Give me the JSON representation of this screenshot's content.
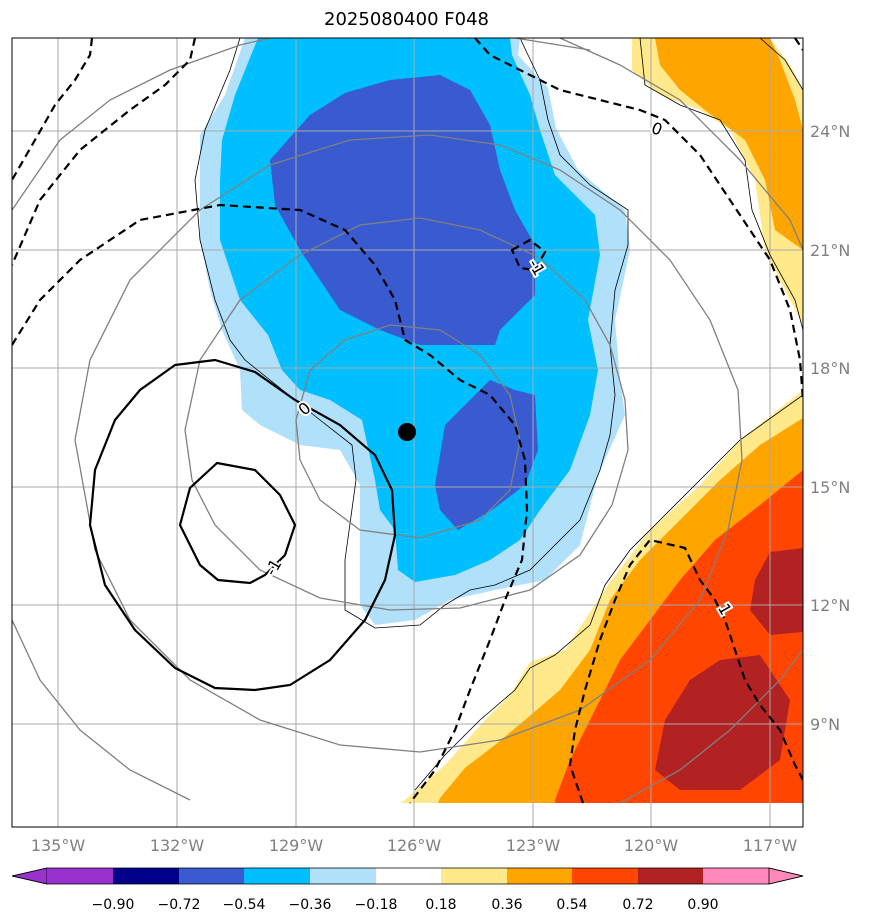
{
  "title": "2025080400 F048",
  "map": {
    "lon_range": [
      -136.5,
      -116.5
    ],
    "lat_range": [
      7.0,
      26.5
    ],
    "lon_ticks": [
      {
        "value": -135,
        "label": "135°W"
      },
      {
        "value": -132,
        "label": "132°W"
      },
      {
        "value": -129,
        "label": "129°W"
      },
      {
        "value": -126,
        "label": "126°W"
      },
      {
        "value": -123,
        "label": "123°W"
      },
      {
        "value": -120,
        "label": "120°W"
      },
      {
        "value": -117,
        "label": "117°W"
      }
    ],
    "lat_ticks": [
      {
        "value": 9,
        "label": "9°N"
      },
      {
        "value": 12,
        "label": "12°N"
      },
      {
        "value": 15,
        "label": "15°N"
      },
      {
        "value": 18,
        "label": "18°N"
      },
      {
        "value": 21,
        "label": "21°N"
      },
      {
        "value": 24,
        "label": "24°N"
      }
    ],
    "gridlines": true,
    "center_marker": {
      "lon": -126.2,
      "lat": 16.4
    },
    "contour_labels": [
      {
        "text": "0",
        "lon": -129.2,
        "lat": 16.8
      },
      {
        "text": "-1",
        "lon": -129.4,
        "lat": 13.0
      },
      {
        "text": "0",
        "lon": -120.1,
        "lat": 23.9
      },
      {
        "text": "-1",
        "lon": -123.0,
        "lat": 20.1
      },
      {
        "text": "1",
        "lon": -118.2,
        "lat": 11.9
      }
    ]
  },
  "colorbar": {
    "colors": [
      "#9932cc",
      "#00008b",
      "#3a5ad0",
      "#00bfff",
      "#b0e0fa",
      "#ffffff",
      "#ffe98a",
      "#ffa500",
      "#ff4500",
      "#b22222",
      "#ff88bb"
    ],
    "labels": [
      "−0.90",
      "−0.72",
      "−0.54",
      "−0.36",
      "−0.18",
      "0.18",
      "0.36",
      "0.54",
      "0.72",
      "0.90"
    ]
  }
}
